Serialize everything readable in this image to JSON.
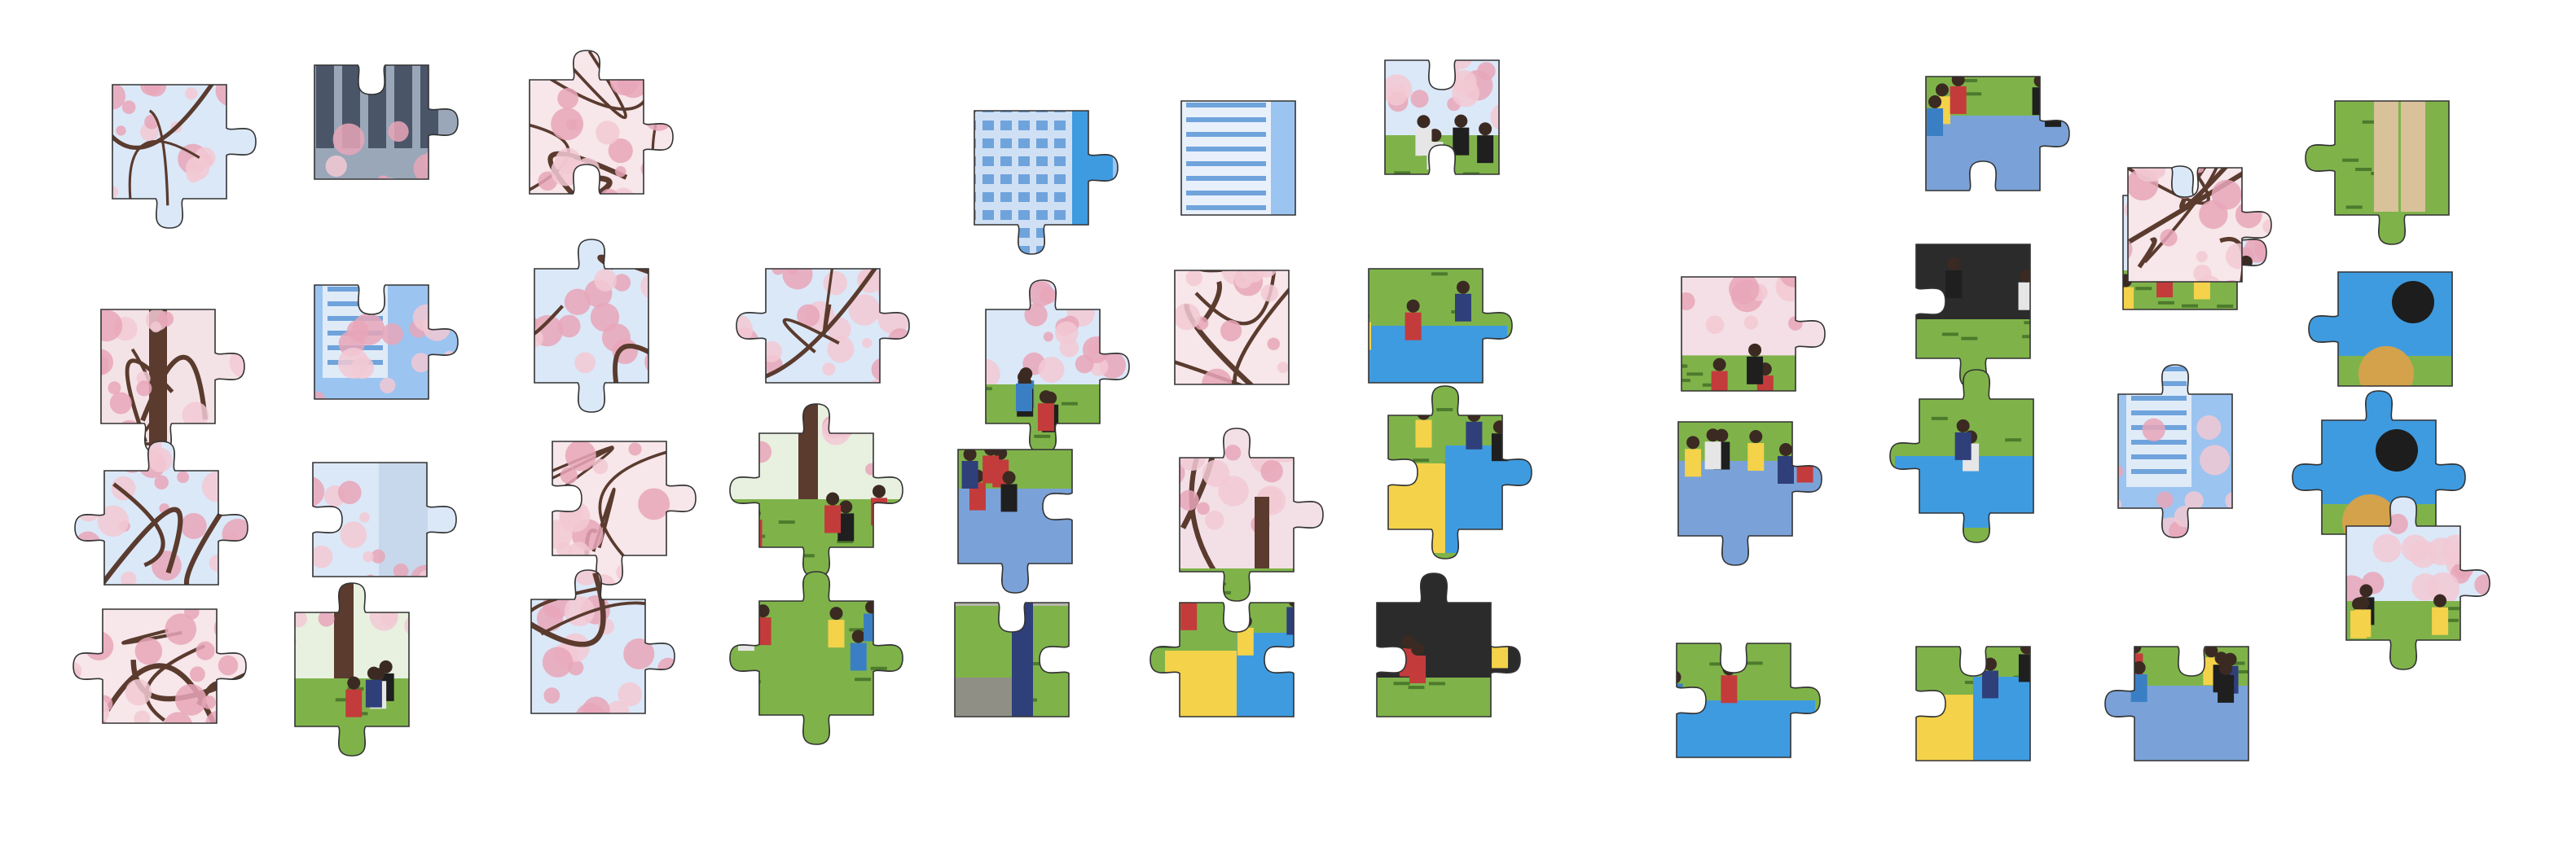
{
  "app": {
    "title": ""
  },
  "palette": {
    "sky": "#9cc4f0",
    "sky_light": "#dbe8f8",
    "blossom": "#f2c9d4",
    "blossom_deep": "#e8a6b8",
    "branch": "#5a3b2e",
    "grass": "#7fb34a",
    "grass_dark": "#4d7a2c",
    "tarp_blue": "#3f9be0",
    "tarp_yellow": "#f4d24a",
    "building": "#6fa3dc",
    "shadow": "#1d1d1d",
    "clothing": "#2f3f7a"
  },
  "pieces": [
    {
      "id": "p01",
      "scene": "blossom-sky",
      "tabs": {
        "top": 0,
        "right": 1,
        "bottom": 1,
        "left": 0
      }
    },
    {
      "id": "p02",
      "scene": "building-blossom",
      "tabs": {
        "top": -1,
        "right": 1,
        "bottom": 0,
        "left": 0
      }
    },
    {
      "id": "p03",
      "scene": "blossom-branch",
      "tabs": {
        "top": 1,
        "right": 1,
        "bottom": -1,
        "left": 0
      }
    },
    {
      "id": "p04",
      "scene": "tower-sky",
      "tabs": {
        "top": 0,
        "right": 1,
        "bottom": 1,
        "left": 0
      }
    },
    {
      "id": "p05",
      "scene": "tower",
      "tabs": {
        "top": 0,
        "right": 0,
        "bottom": 0,
        "left": 0
      }
    },
    {
      "id": "p06",
      "scene": "blossom-people",
      "tabs": {
        "top": -1,
        "right": 0,
        "bottom": -1,
        "left": 0
      }
    },
    {
      "id": "p07",
      "scene": "branch-trunk",
      "tabs": {
        "top": 0,
        "right": 1,
        "bottom": 1,
        "left": 0
      }
    },
    {
      "id": "p08",
      "scene": "tower-blossom",
      "tabs": {
        "top": -1,
        "right": 1,
        "bottom": 0,
        "left": 0
      }
    },
    {
      "id": "p09",
      "scene": "blossom-sky",
      "tabs": {
        "top": 1,
        "right": 0,
        "bottom": 1,
        "left": 0
      }
    },
    {
      "id": "p10",
      "scene": "blossom-sky",
      "tabs": {
        "top": 0,
        "right": 1,
        "bottom": 0,
        "left": 1
      }
    },
    {
      "id": "p11",
      "scene": "blossom-people",
      "tabs": {
        "top": 1,
        "right": 1,
        "bottom": 1,
        "left": 0
      }
    },
    {
      "id": "p12",
      "scene": "blossom-branch",
      "tabs": {
        "top": 0,
        "right": 0,
        "bottom": 0,
        "left": 0
      }
    },
    {
      "id": "p13",
      "scene": "picnic-grass",
      "tabs": {
        "top": 0,
        "right": 1,
        "bottom": 0,
        "left": 0
      }
    },
    {
      "id": "p14",
      "scene": "blossom-grass",
      "tabs": {
        "top": 0,
        "right": 1,
        "bottom": 0,
        "left": 0
      }
    },
    {
      "id": "p15",
      "scene": "people-dark",
      "tabs": {
        "top": 0,
        "right": 0,
        "bottom": 1,
        "left": -1
      }
    },
    {
      "id": "p16",
      "scene": "blossom-people",
      "tabs": {
        "top": 1,
        "right": 1,
        "bottom": 0,
        "left": 0
      }
    },
    {
      "id": "p17",
      "scene": "grass-legs",
      "tabs": {
        "top": 0,
        "right": 0,
        "bottom": 1,
        "left": 1
      }
    },
    {
      "id": "p18",
      "scene": "blossom-sky",
      "tabs": {
        "top": 1,
        "right": 1,
        "bottom": 0,
        "left": 1
      }
    },
    {
      "id": "p19",
      "scene": "blossom-building",
      "tabs": {
        "top": 0,
        "right": 1,
        "bottom": 0,
        "left": -1
      }
    },
    {
      "id": "p20",
      "scene": "blossom-branch",
      "tabs": {
        "top": 0,
        "right": 1,
        "bottom": 1,
        "left": -1
      }
    },
    {
      "id": "p21",
      "scene": "tree-people",
      "tabs": {
        "top": 1,
        "right": 1,
        "bottom": 1,
        "left": 1
      }
    },
    {
      "id": "p22",
      "scene": "picnic-people",
      "tabs": {
        "top": 0,
        "right": -1,
        "bottom": 1,
        "left": 0
      }
    },
    {
      "id": "p23",
      "scene": "blossom-tree",
      "tabs": {
        "top": 1,
        "right": 1,
        "bottom": 1,
        "left": 0
      }
    },
    {
      "id": "p24",
      "scene": "picnic-tarp",
      "tabs": {
        "top": 1,
        "right": 1,
        "bottom": 1,
        "left": -1
      }
    },
    {
      "id": "p25",
      "scene": "picnic-people",
      "tabs": {
        "top": 0,
        "right": 1,
        "bottom": 1,
        "left": 0
      }
    },
    {
      "id": "p26",
      "scene": "picnic-grass",
      "tabs": {
        "top": 1,
        "right": 0,
        "bottom": 1,
        "left": 1
      }
    },
    {
      "id": "p27",
      "scene": "tower-blossom",
      "tabs": {
        "top": 1,
        "right": 0,
        "bottom": 1,
        "left": 0
      }
    },
    {
      "id": "p28",
      "scene": "tarp-blue",
      "tabs": {
        "top": 0,
        "right": 0,
        "bottom": 0,
        "left": 1
      }
    },
    {
      "id": "p29",
      "scene": "blossom-branch",
      "tabs": {
        "top": 0,
        "right": 1,
        "bottom": 0,
        "left": 1
      }
    },
    {
      "id": "p30",
      "scene": "tree-people",
      "tabs": {
        "top": 1,
        "right": 0,
        "bottom": 1,
        "left": 0
      }
    },
    {
      "id": "p31",
      "scene": "blossom-sky",
      "tabs": {
        "top": 1,
        "right": 1,
        "bottom": 0,
        "left": 0
      }
    },
    {
      "id": "p32",
      "scene": "people-grass",
      "tabs": {
        "top": 1,
        "right": 1,
        "bottom": 1,
        "left": 1
      }
    },
    {
      "id": "p33",
      "scene": "path-legs",
      "tabs": {
        "top": -1,
        "right": -1,
        "bottom": 0,
        "left": 0
      }
    },
    {
      "id": "p34",
      "scene": "picnic-tarp",
      "tabs": {
        "top": -1,
        "right": -1,
        "bottom": 0,
        "left": 1
      }
    },
    {
      "id": "p35",
      "scene": "people-dark",
      "tabs": {
        "top": 1,
        "right": 1,
        "bottom": 0,
        "left": -1
      }
    },
    {
      "id": "p36",
      "scene": "picnic-grass",
      "tabs": {
        "top": -1,
        "right": 1,
        "bottom": 0,
        "left": -1
      }
    },
    {
      "id": "p37",
      "scene": "picnic-tarp",
      "tabs": {
        "top": -1,
        "right": 0,
        "bottom": 0,
        "left": -1
      }
    },
    {
      "id": "p38",
      "scene": "picnic-people",
      "tabs": {
        "top": -1,
        "right": 0,
        "bottom": 0,
        "left": 1
      }
    },
    {
      "id": "p39",
      "scene": "tarp-blue",
      "tabs": {
        "top": 1,
        "right": 1,
        "bottom": 0,
        "left": 1
      }
    },
    {
      "id": "p40",
      "scene": "picnic-people",
      "tabs": {
        "top": 0,
        "right": 1,
        "bottom": -1,
        "left": 0
      }
    },
    {
      "id": "p41",
      "scene": "blossom-branch",
      "tabs": {
        "top": -1,
        "right": 1,
        "bottom": 0,
        "left": 0
      }
    },
    {
      "id": "p42",
      "scene": "blossom-people",
      "tabs": {
        "top": 1,
        "right": 1,
        "bottom": 1,
        "left": 0
      }
    }
  ]
}
